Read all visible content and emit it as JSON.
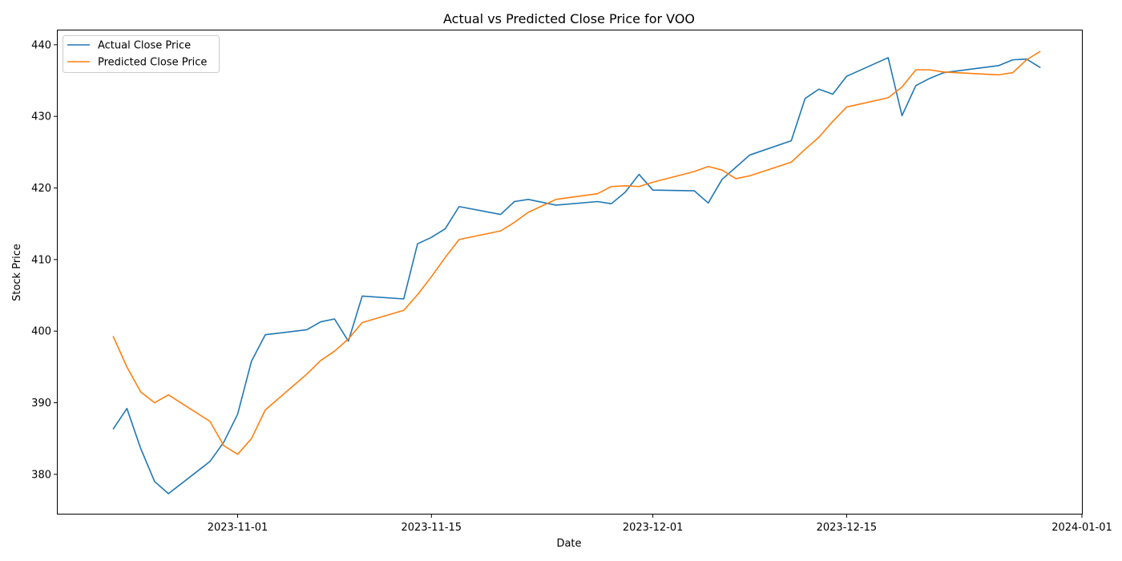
{
  "chart_data": {
    "type": "line",
    "title": "Actual vs Predicted Close Price for VOO",
    "xlabel": "Date",
    "ylabel": "Stock Price",
    "legend_placement": "top-left",
    "grid": false,
    "xlim": [
      "2023-10-19",
      "2024-01-01"
    ],
    "ylim": [
      374.5,
      442.0
    ],
    "x_ticks": [
      "2023-11-01",
      "2023-11-15",
      "2023-12-01",
      "2023-12-15",
      "2024-01-01"
    ],
    "y_ticks": [
      380,
      390,
      400,
      410,
      420,
      430,
      440
    ],
    "x": [
      "2023-10-23",
      "2023-10-24",
      "2023-10-25",
      "2023-10-26",
      "2023-10-27",
      "2023-10-30",
      "2023-10-31",
      "2023-11-01",
      "2023-11-02",
      "2023-11-03",
      "2023-11-06",
      "2023-11-07",
      "2023-11-08",
      "2023-11-09",
      "2023-11-10",
      "2023-11-13",
      "2023-11-14",
      "2023-11-15",
      "2023-11-16",
      "2023-11-17",
      "2023-11-20",
      "2023-11-21",
      "2023-11-22",
      "2023-11-24",
      "2023-11-27",
      "2023-11-28",
      "2023-11-29",
      "2023-11-30",
      "2023-12-01",
      "2023-12-04",
      "2023-12-05",
      "2023-12-06",
      "2023-12-07",
      "2023-12-08",
      "2023-12-11",
      "2023-12-12",
      "2023-12-13",
      "2023-12-14",
      "2023-12-15",
      "2023-12-18",
      "2023-12-19",
      "2023-12-20",
      "2023-12-21",
      "2023-12-22",
      "2023-12-26",
      "2023-12-27",
      "2023-12-28",
      "2023-12-29"
    ],
    "series": [
      {
        "name": "Actual Close Price",
        "color": "#1f77b4",
        "values": [
          386.3,
          389.2,
          383.6,
          379.0,
          377.3,
          381.8,
          384.5,
          388.4,
          395.8,
          399.5,
          400.2,
          401.3,
          401.7,
          398.6,
          404.9,
          404.5,
          412.2,
          413.1,
          414.3,
          417.4,
          416.3,
          418.1,
          418.4,
          417.6,
          418.1,
          417.8,
          419.4,
          421.9,
          419.7,
          419.6,
          417.9,
          421.2,
          422.9,
          424.6,
          426.6,
          432.5,
          433.8,
          433.1,
          435.6,
          438.2,
          430.1,
          434.3,
          435.3,
          436.1,
          437.1,
          437.9,
          438.0,
          436.8
        ]
      },
      {
        "name": "Predicted Close Price",
        "color": "#ff7f0e",
        "values": [
          399.3,
          395.0,
          391.5,
          390.0,
          391.1,
          387.4,
          384.0,
          382.8,
          385.0,
          389.0,
          394.0,
          395.9,
          397.2,
          398.9,
          401.2,
          402.9,
          405.1,
          407.6,
          410.3,
          412.8,
          414.0,
          415.2,
          416.6,
          418.4,
          419.2,
          420.2,
          420.3,
          420.2,
          420.8,
          422.3,
          423.0,
          422.5,
          421.3,
          421.7,
          423.6,
          425.4,
          427.1,
          429.3,
          431.3,
          432.6,
          434.1,
          436.5,
          436.5,
          436.2,
          435.8,
          436.1,
          437.9,
          439.1
        ]
      }
    ]
  }
}
